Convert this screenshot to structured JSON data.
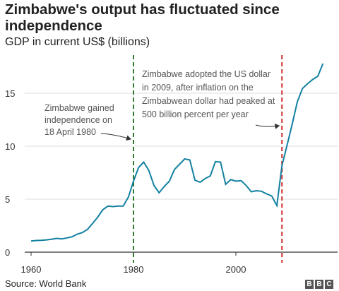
{
  "chart_data": {
    "type": "line",
    "title": "Zimbabwe's output has fluctuated since independence",
    "subtitle": "GDP in current US$ (billions)",
    "ylim": [
      0,
      18
    ],
    "xlim": [
      1958,
      2019
    ],
    "y_ticks": [
      0,
      5,
      10,
      15
    ],
    "x_ticks": [
      1960,
      1980,
      2000
    ],
    "grid": true,
    "series": [
      {
        "color": "#1380A1",
        "x": [
          1960,
          1961,
          1962,
          1963,
          1964,
          1965,
          1966,
          1967,
          1968,
          1969,
          1970,
          1971,
          1972,
          1973,
          1974,
          1975,
          1976,
          1977,
          1978,
          1979,
          1980,
          1981,
          1982,
          1983,
          1984,
          1985,
          1986,
          1987,
          1988,
          1989,
          1990,
          1991,
          1992,
          1993,
          1994,
          1995,
          1996,
          1997,
          1998,
          1999,
          2000,
          2001,
          2002,
          2003,
          2004,
          2005,
          2006,
          2007,
          2008,
          2009,
          2010,
          2011,
          2012,
          2013,
          2014,
          2015,
          2016,
          2017
        ],
        "y": [
          1.05,
          1.1,
          1.12,
          1.16,
          1.22,
          1.3,
          1.25,
          1.35,
          1.45,
          1.7,
          1.85,
          2.15,
          2.7,
          3.3,
          4.0,
          4.35,
          4.3,
          4.35,
          4.35,
          5.2,
          6.7,
          8.0,
          8.5,
          7.7,
          6.3,
          5.6,
          6.2,
          6.7,
          7.8,
          8.3,
          8.8,
          8.7,
          6.8,
          6.6,
          6.95,
          7.2,
          8.55,
          8.5,
          6.4,
          6.85,
          6.7,
          6.75,
          6.3,
          5.7,
          5.8,
          5.75,
          5.5,
          5.3,
          4.4,
          8.2,
          10.1,
          12.1,
          14.2,
          15.45,
          15.9,
          16.3,
          16.6,
          17.8
        ]
      }
    ],
    "markers": [
      {
        "x": 1980,
        "color": "#2E7D32",
        "style": "dashed"
      },
      {
        "x": 2009,
        "color": "#D32F2F",
        "style": "dashed"
      }
    ],
    "annotations": [
      {
        "lines": [
          "Zimbabwe gained",
          "independence on",
          "18 April 1980"
        ]
      },
      {
        "lines": [
          "Zimbabwe adopted the US dollar",
          "in 2009, after inflation on the",
          "Zimbabwean dollar had peaked at",
          "500 billion percent per year"
        ]
      }
    ]
  },
  "footer": {
    "source": "Source: World Bank",
    "logo": [
      "B",
      "B",
      "C"
    ]
  }
}
